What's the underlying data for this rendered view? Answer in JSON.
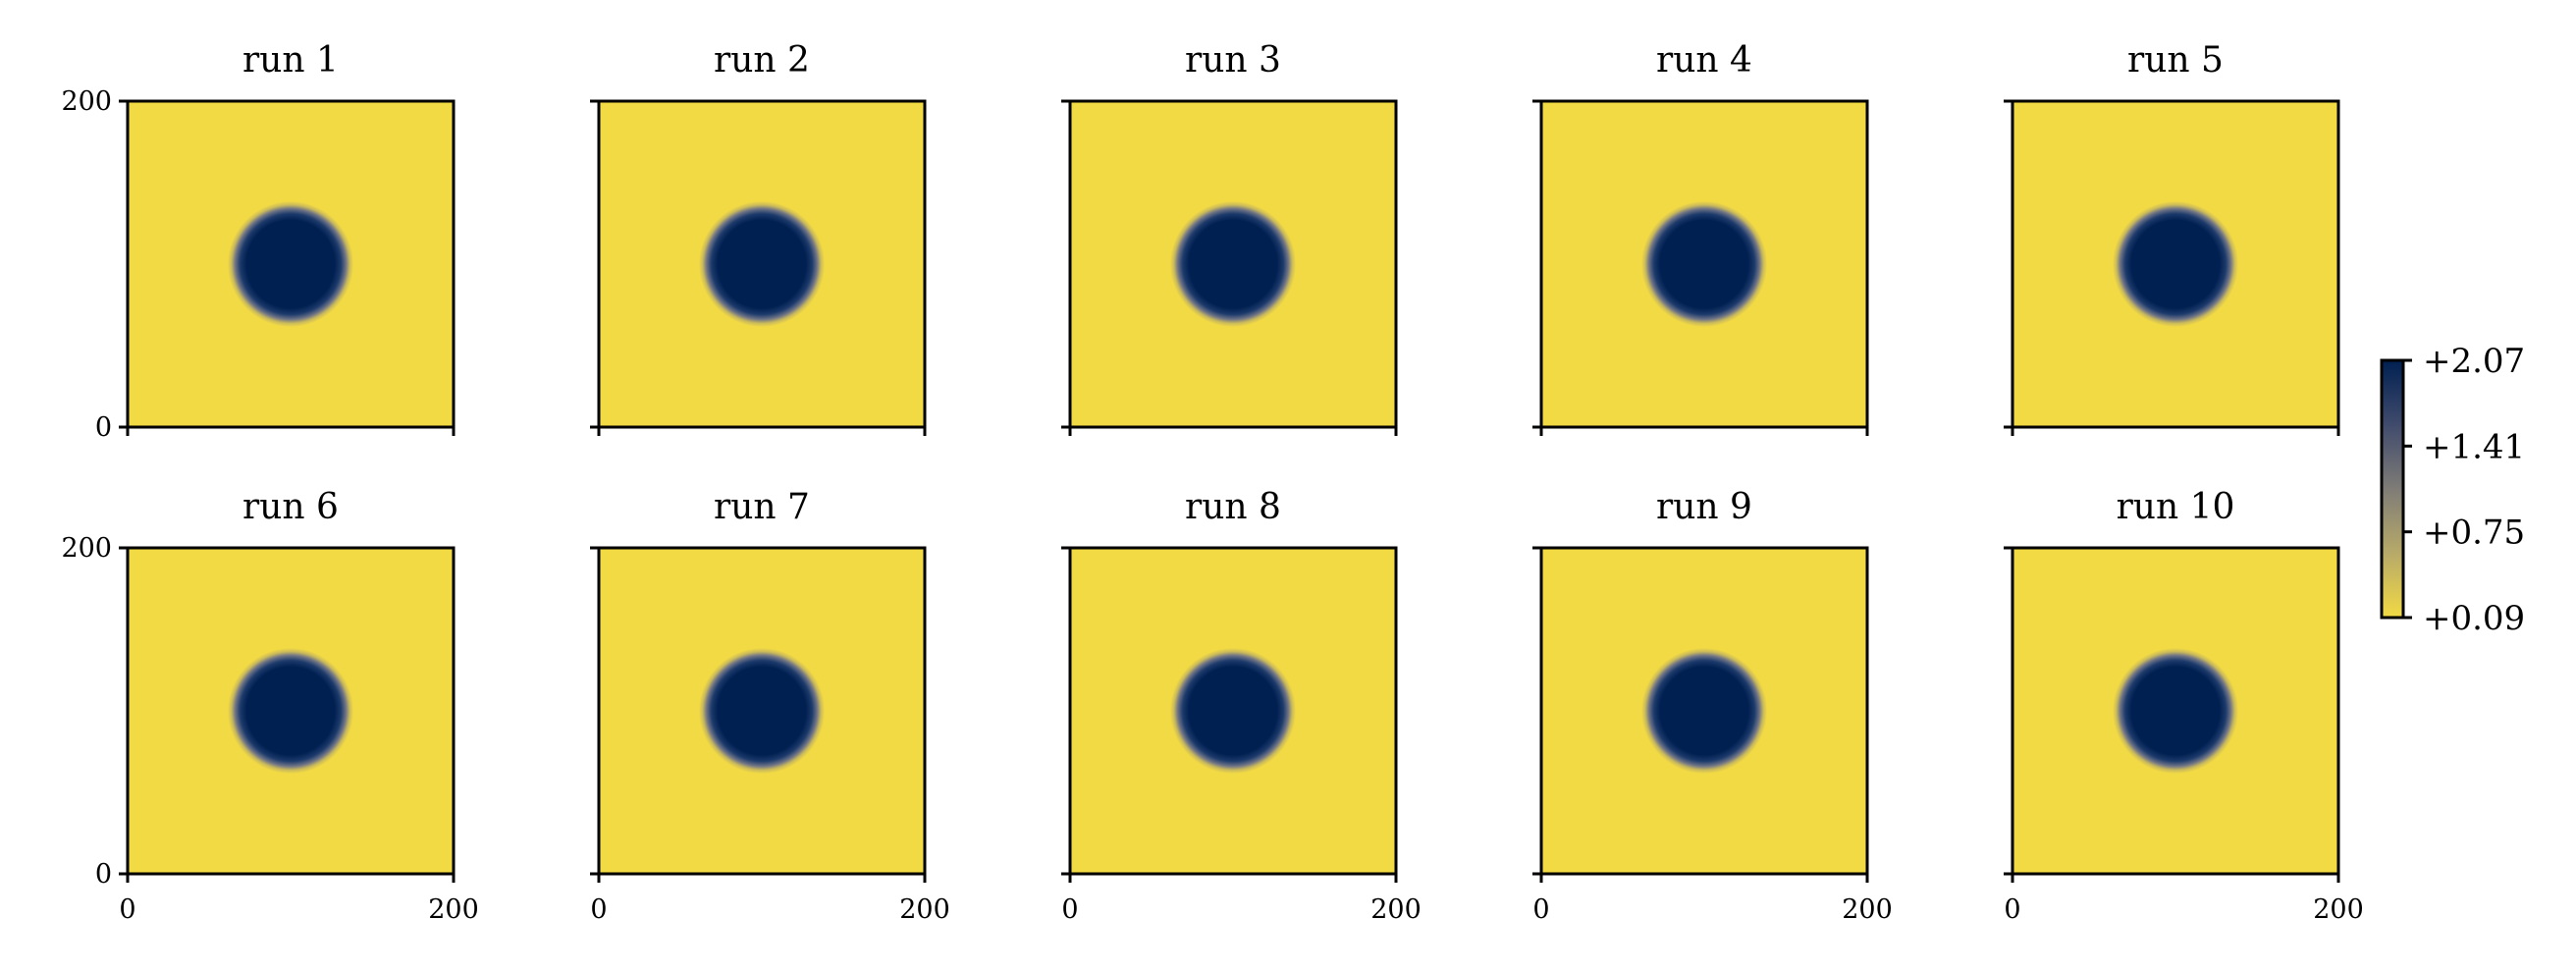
{
  "chart_data": {
    "type": "heatmap",
    "colormap": "cividis",
    "colors": {
      "low": "#f2da44",
      "mid": "#7f7c77",
      "high": "#002051"
    },
    "xlim": [
      0,
      200
    ],
    "ylim": [
      0,
      200
    ],
    "x_ticks": [
      "0",
      "200"
    ],
    "y_ticks": [
      "0",
      "200"
    ],
    "field": {
      "center": [
        100,
        100
      ],
      "core_radius": 25,
      "edge_width": 8,
      "min": 0.09,
      "max": 2.07
    },
    "panels": [
      {
        "title": "run 1"
      },
      {
        "title": "run 2"
      },
      {
        "title": "run 3"
      },
      {
        "title": "run 4"
      },
      {
        "title": "run 5"
      },
      {
        "title": "run 6"
      },
      {
        "title": "run 7"
      },
      {
        "title": "run 8"
      },
      {
        "title": "run 9"
      },
      {
        "title": "run 10"
      }
    ],
    "colorbar": {
      "range": [
        0.09,
        2.07
      ],
      "ticks": [
        "+2.07",
        "+1.41",
        "+0.75",
        "+0.09"
      ]
    }
  }
}
